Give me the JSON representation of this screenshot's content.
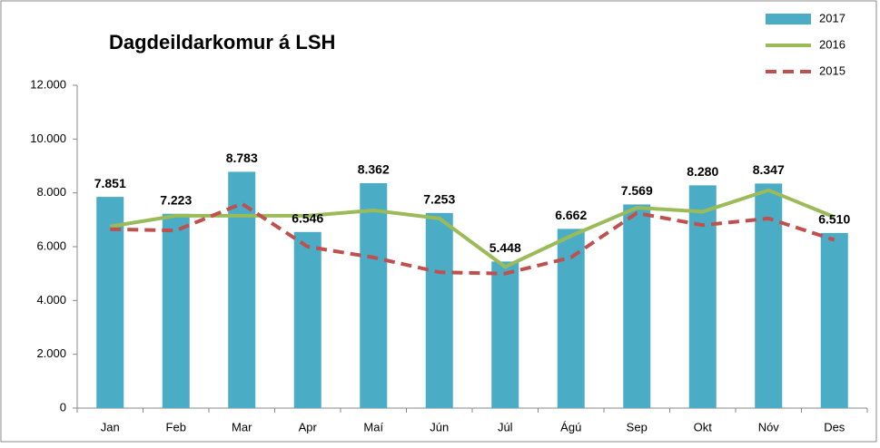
{
  "chart_data": {
    "type": "bar",
    "title": "Dagdeildarkomur á LSH",
    "categories": [
      "Jan",
      "Feb",
      "Mar",
      "Apr",
      "Maí",
      "Jún",
      "Júl",
      "Ágú",
      "Sep",
      "Okt",
      "Nóv",
      "Des"
    ],
    "series": [
      {
        "name": "2017",
        "type": "bar",
        "color": "#4bacc6",
        "values": [
          7851,
          7223,
          8783,
          6546,
          8362,
          7253,
          5448,
          6662,
          7569,
          8280,
          8347,
          6510
        ],
        "value_labels": [
          "7.851",
          "7.223",
          "8.783",
          "6.546",
          "8.362",
          "7.253",
          "5.448",
          "6.662",
          "7.569",
          "8.280",
          "8.347",
          "6.510"
        ]
      },
      {
        "name": "2016",
        "type": "line",
        "color": "#9bbb59",
        "values": [
          6750,
          7150,
          7150,
          7150,
          7350,
          7050,
          5250,
          6400,
          7450,
          7300,
          8100,
          7100
        ]
      },
      {
        "name": "2015",
        "type": "line",
        "style": "dashed",
        "color": "#c0504d",
        "values": [
          6650,
          6600,
          7600,
          6000,
          5600,
          5050,
          5000,
          5600,
          7250,
          6800,
          7050,
          6250
        ]
      }
    ],
    "ylim": [
      0,
      12000
    ],
    "yticks": [
      0,
      {
        "value": 2000,
        "label": "2.000"
      },
      {
        "value": 4000,
        "label": "4.000"
      },
      {
        "value": 6000,
        "label": "6.000"
      },
      {
        "value": 8000,
        "label": "8.000"
      },
      {
        "value": 10000,
        "label": "10.000"
      },
      {
        "value": 12000,
        "label": "12.000"
      }
    ],
    "grid": false,
    "legend": "top-right"
  }
}
